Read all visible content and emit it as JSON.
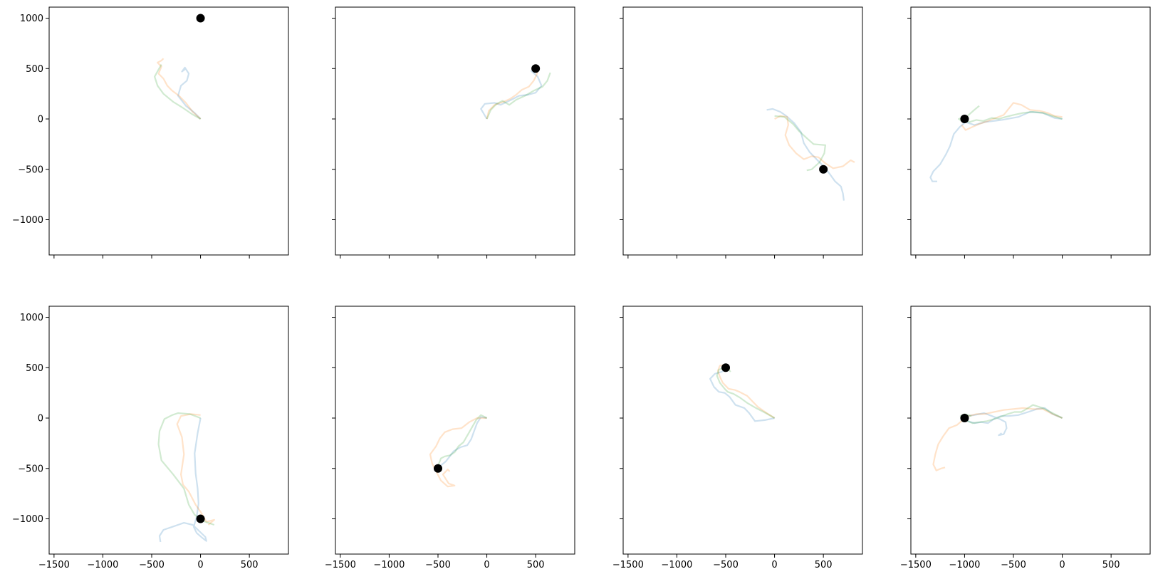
{
  "chart_data": {
    "type": "line",
    "layout": "2x4 grid of subplots, shared x and y axes",
    "xlim": [
      -1550,
      900
    ],
    "ylim": [
      -1350,
      1110
    ],
    "xticks": [
      -1500,
      -1000,
      -500,
      0,
      500
    ],
    "yticks": [
      1000,
      500,
      0,
      -500,
      -1000
    ],
    "xtick_labels": [
      "−1500",
      "−1000",
      "−500",
      "0",
      "500"
    ],
    "ytick_labels": [
      "1000",
      "500",
      "0",
      "−500",
      "−1000"
    ],
    "xtick_labels_shown_on": "bottom row only",
    "ytick_labels_shown_on": "left column only",
    "grid": false,
    "legend": "none",
    "series_colors": [
      "#1f77b4",
      "#ff7f0e",
      "#2ca02c"
    ],
    "line_alpha": 0.22,
    "marker_color": "#000000",
    "panels": [
      {
        "target": [
          0,
          1000
        ],
        "series": [
          {
            "color": "#1f77b4",
            "x": [
              0,
              -60,
              -150,
              -230,
              -200,
              -140,
              -120,
              -160,
              -190,
              -150
            ],
            "y": [
              0,
              60,
              130,
              230,
              330,
              380,
              450,
              510,
              470,
              500
            ]
          },
          {
            "color": "#ff7f0e",
            "x": [
              0,
              -80,
              -150,
              -220,
              -290,
              -340,
              -380,
              -430,
              -400,
              -440,
              -400,
              -380
            ],
            "y": [
              0,
              70,
              160,
              230,
              280,
              330,
              400,
              450,
              520,
              560,
              580,
              600
            ]
          },
          {
            "color": "#2ca02c",
            "x": [
              0,
              -90,
              -180,
              -280,
              -380,
              -440,
              -470,
              -430,
              -400
            ],
            "y": [
              0,
              50,
              110,
              170,
              250,
              330,
              420,
              490,
              540
            ]
          }
        ]
      },
      {
        "target": [
          500,
          500
        ],
        "series": [
          {
            "color": "#1f77b4",
            "x": [
              0,
              -60,
              -20,
              80,
              140,
              250,
              330,
              420,
              500,
              560,
              520,
              450
            ],
            "y": [
              0,
              100,
              150,
              160,
              140,
              190,
              230,
              240,
              260,
              330,
              420,
              480
            ]
          },
          {
            "color": "#ff7f0e",
            "x": [
              0,
              20,
              80,
              170,
              240,
              300,
              360,
              430,
              480,
              520
            ],
            "y": [
              0,
              80,
              140,
              170,
              200,
              240,
              290,
              320,
              380,
              460
            ]
          },
          {
            "color": "#2ca02c",
            "x": [
              0,
              40,
              100,
              160,
              230,
              300,
              390,
              480,
              570,
              620,
              650
            ],
            "y": [
              0,
              90,
              150,
              180,
              140,
              190,
              230,
              280,
              320,
              380,
              460
            ]
          }
        ]
      },
      {
        "target": [
          500,
          -500
        ],
        "series": [
          {
            "color": "#1f77b4",
            "x": [
              -80,
              -20,
              60,
              120,
              200,
              270,
              300,
              360,
              420,
              480,
              560,
              620,
              680,
              700,
              710
            ],
            "y": [
              90,
              100,
              70,
              30,
              -40,
              -130,
              -240,
              -330,
              -390,
              -450,
              -540,
              -620,
              -670,
              -740,
              -810
            ]
          },
          {
            "color": "#ff7f0e",
            "x": [
              0,
              60,
              130,
              140,
              110,
              150,
              220,
              300,
              380,
              450,
              520,
              600,
              700,
              780,
              820
            ],
            "y": [
              0,
              30,
              20,
              -60,
              -160,
              -260,
              -340,
              -400,
              -370,
              -380,
              -440,
              -490,
              -470,
              -410,
              -430
            ]
          },
          {
            "color": "#2ca02c",
            "x": [
              0,
              100,
              190,
              250,
              330,
              400,
              520,
              510,
              460,
              380,
              330
            ],
            "y": [
              30,
              20,
              -50,
              -120,
              -190,
              -250,
              -260,
              -340,
              -430,
              -500,
              -510
            ]
          }
        ]
      },
      {
        "target": [
          -1000,
          0
        ],
        "series": [
          {
            "color": "#1f77b4",
            "x": [
              0,
              -80,
              -200,
              -330,
              -450,
              -620,
              -790,
              -900,
              -990,
              -1050,
              -1110,
              -1150,
              -1190,
              -1250,
              -1320,
              -1350,
              -1330,
              -1280
            ],
            "y": [
              0,
              10,
              60,
              70,
              20,
              -10,
              -30,
              -60,
              -30,
              -80,
              -150,
              -270,
              -350,
              -450,
              -520,
              -580,
              -620,
              -620
            ]
          },
          {
            "color": "#ff7f0e",
            "x": [
              0,
              -80,
              -150,
              -230,
              -330,
              -420,
              -500,
              -550,
              -600,
              -680,
              -760,
              -850,
              -920,
              -990,
              -1030
            ],
            "y": [
              20,
              30,
              60,
              80,
              90,
              140,
              160,
              100,
              40,
              10,
              -20,
              -50,
              -80,
              -110,
              -60
            ]
          },
          {
            "color": "#2ca02c",
            "x": [
              0,
              -100,
              -200,
              -300,
              -400,
              -500,
              -580,
              -650,
              -720,
              -810,
              -880,
              -950,
              -1030,
              -1060,
              -970,
              -900,
              -850
            ],
            "y": [
              0,
              30,
              60,
              70,
              60,
              40,
              20,
              0,
              10,
              -20,
              -10,
              -30,
              -20,
              0,
              30,
              90,
              130
            ]
          }
        ]
      },
      {
        "target": [
          0,
          -1000
        ],
        "series": [
          {
            "color": "#1f77b4",
            "x": [
              0,
              -30,
              -60,
              -50,
              -30,
              -20,
              -40,
              -70,
              -40,
              20,
              60,
              50,
              -80,
              -170,
              -290,
              -380,
              -420,
              -410
            ],
            "y": [
              0,
              -150,
              -350,
              -550,
              -700,
              -850,
              -980,
              -1080,
              -1140,
              -1190,
              -1220,
              -1180,
              -1060,
              -1040,
              -1080,
              -1110,
              -1170,
              -1230
            ]
          },
          {
            "color": "#ff7f0e",
            "x": [
              0,
              -100,
              -200,
              -240,
              -190,
              -170,
              -200,
              -180,
              -120,
              -50,
              0,
              60,
              140,
              80
            ],
            "y": [
              30,
              40,
              20,
              -60,
              -190,
              -360,
              -560,
              -660,
              -730,
              -860,
              -930,
              -1030,
              -1010,
              -1060
            ]
          },
          {
            "color": "#2ca02c",
            "x": [
              0,
              -110,
              -230,
              -290,
              -370,
              -420,
              -430,
              -400,
              -280,
              -170,
              -120,
              -60,
              20,
              140
            ],
            "y": [
              0,
              40,
              50,
              30,
              -10,
              -130,
              -260,
              -420,
              -560,
              -700,
              -860,
              -960,
              -1020,
              -1060
            ]
          }
        ]
      },
      {
        "target": [
          -500,
          -500
        ],
        "series": [
          {
            "color": "#1f77b4",
            "x": [
              0,
              -60,
              -100,
              -130,
              -160,
              -200,
              -270,
              -340,
              -380,
              -420,
              -470,
              -510
            ],
            "y": [
              0,
              10,
              -50,
              -130,
              -210,
              -270,
              -290,
              -330,
              -380,
              -430,
              -470,
              -500
            ]
          },
          {
            "color": "#ff7f0e",
            "x": [
              0,
              -100,
              -180,
              -260,
              -350,
              -430,
              -480,
              -520,
              -580,
              -560,
              -470,
              -400,
              -330,
              -390,
              -450,
              -400,
              -380
            ],
            "y": [
              0,
              0,
              -40,
              -100,
              -110,
              -140,
              -200,
              -280,
              -360,
              -450,
              -620,
              -680,
              -670,
              -650,
              -560,
              -510,
              -530
            ]
          },
          {
            "color": "#2ca02c",
            "x": [
              0,
              -60,
              -110,
              -180,
              -240,
              -290,
              -330,
              -380,
              -430,
              -470,
              -490,
              -510
            ],
            "y": [
              0,
              30,
              -20,
              -140,
              -240,
              -280,
              -340,
              -370,
              -380,
              -400,
              -450,
              -500
            ]
          }
        ]
      },
      {
        "target": [
          -500,
          500
        ],
        "series": [
          {
            "color": "#1f77b4",
            "x": [
              0,
              -100,
              -200,
              -260,
              -310,
              -400,
              -460,
              -510,
              -570,
              -620,
              -660,
              -610,
              -540,
              -480
            ],
            "y": [
              0,
              -20,
              -30,
              50,
              100,
              130,
              210,
              250,
              260,
              310,
              390,
              440,
              460,
              500
            ]
          },
          {
            "color": "#ff7f0e",
            "x": [
              0,
              -80,
              -170,
              -230,
              -280,
              -360,
              -410,
              -470,
              -530,
              -560,
              -580,
              -560,
              -500,
              -460
            ],
            "y": [
              0,
              50,
              110,
              170,
              220,
              260,
              280,
              290,
              350,
              410,
              470,
              520,
              530,
              480
            ]
          },
          {
            "color": "#2ca02c",
            "x": [
              0,
              -90,
              -190,
              -280,
              -350,
              -420,
              -480,
              -510,
              -560,
              -590,
              -570,
              -500,
              -450
            ],
            "y": [
              0,
              50,
              100,
              150,
              200,
              240,
              260,
              290,
              350,
              420,
              480,
              510,
              460
            ]
          }
        ]
      },
      {
        "target": [
          -1000,
          0
        ],
        "series": [
          {
            "color": "#1f77b4",
            "x": [
              0,
              -100,
              -180,
              -260,
              -350,
              -450,
              -550,
              -630,
              -700,
              -760,
              -830,
              -900,
              -970,
              -1000,
              -970,
              -900,
              -800,
              -720,
              -640,
              -580,
              -570,
              -600,
              -650,
              -620
            ],
            "y": [
              0,
              40,
              100,
              90,
              60,
              30,
              20,
              20,
              -10,
              -50,
              -40,
              -50,
              -30,
              0,
              20,
              30,
              50,
              20,
              -10,
              -40,
              -100,
              -160,
              -170,
              -150
            ]
          },
          {
            "color": "#ff7f0e",
            "x": [
              0,
              -100,
              -200,
              -300,
              -400,
              -500,
              -600,
              -700,
              -800,
              -880,
              -960,
              -1020,
              -1080,
              -1160,
              -1220,
              -1270,
              -1300,
              -1320,
              -1290,
              -1240,
              -1200
            ],
            "y": [
              0,
              40,
              90,
              90,
              100,
              90,
              80,
              60,
              40,
              40,
              20,
              -20,
              -70,
              -100,
              -180,
              -260,
              -360,
              -460,
              -520,
              -500,
              -490
            ]
          },
          {
            "color": "#2ca02c",
            "x": [
              0,
              -100,
              -200,
              -300,
              -350,
              -420,
              -490,
              -560,
              -640,
              -700,
              -770,
              -840,
              -920,
              -990,
              -1040,
              -1000,
              -930
            ],
            "y": [
              0,
              50,
              100,
              130,
              100,
              60,
              60,
              40,
              10,
              -10,
              -30,
              -40,
              -50,
              -20,
              20,
              40,
              20
            ]
          }
        ]
      }
    ]
  }
}
